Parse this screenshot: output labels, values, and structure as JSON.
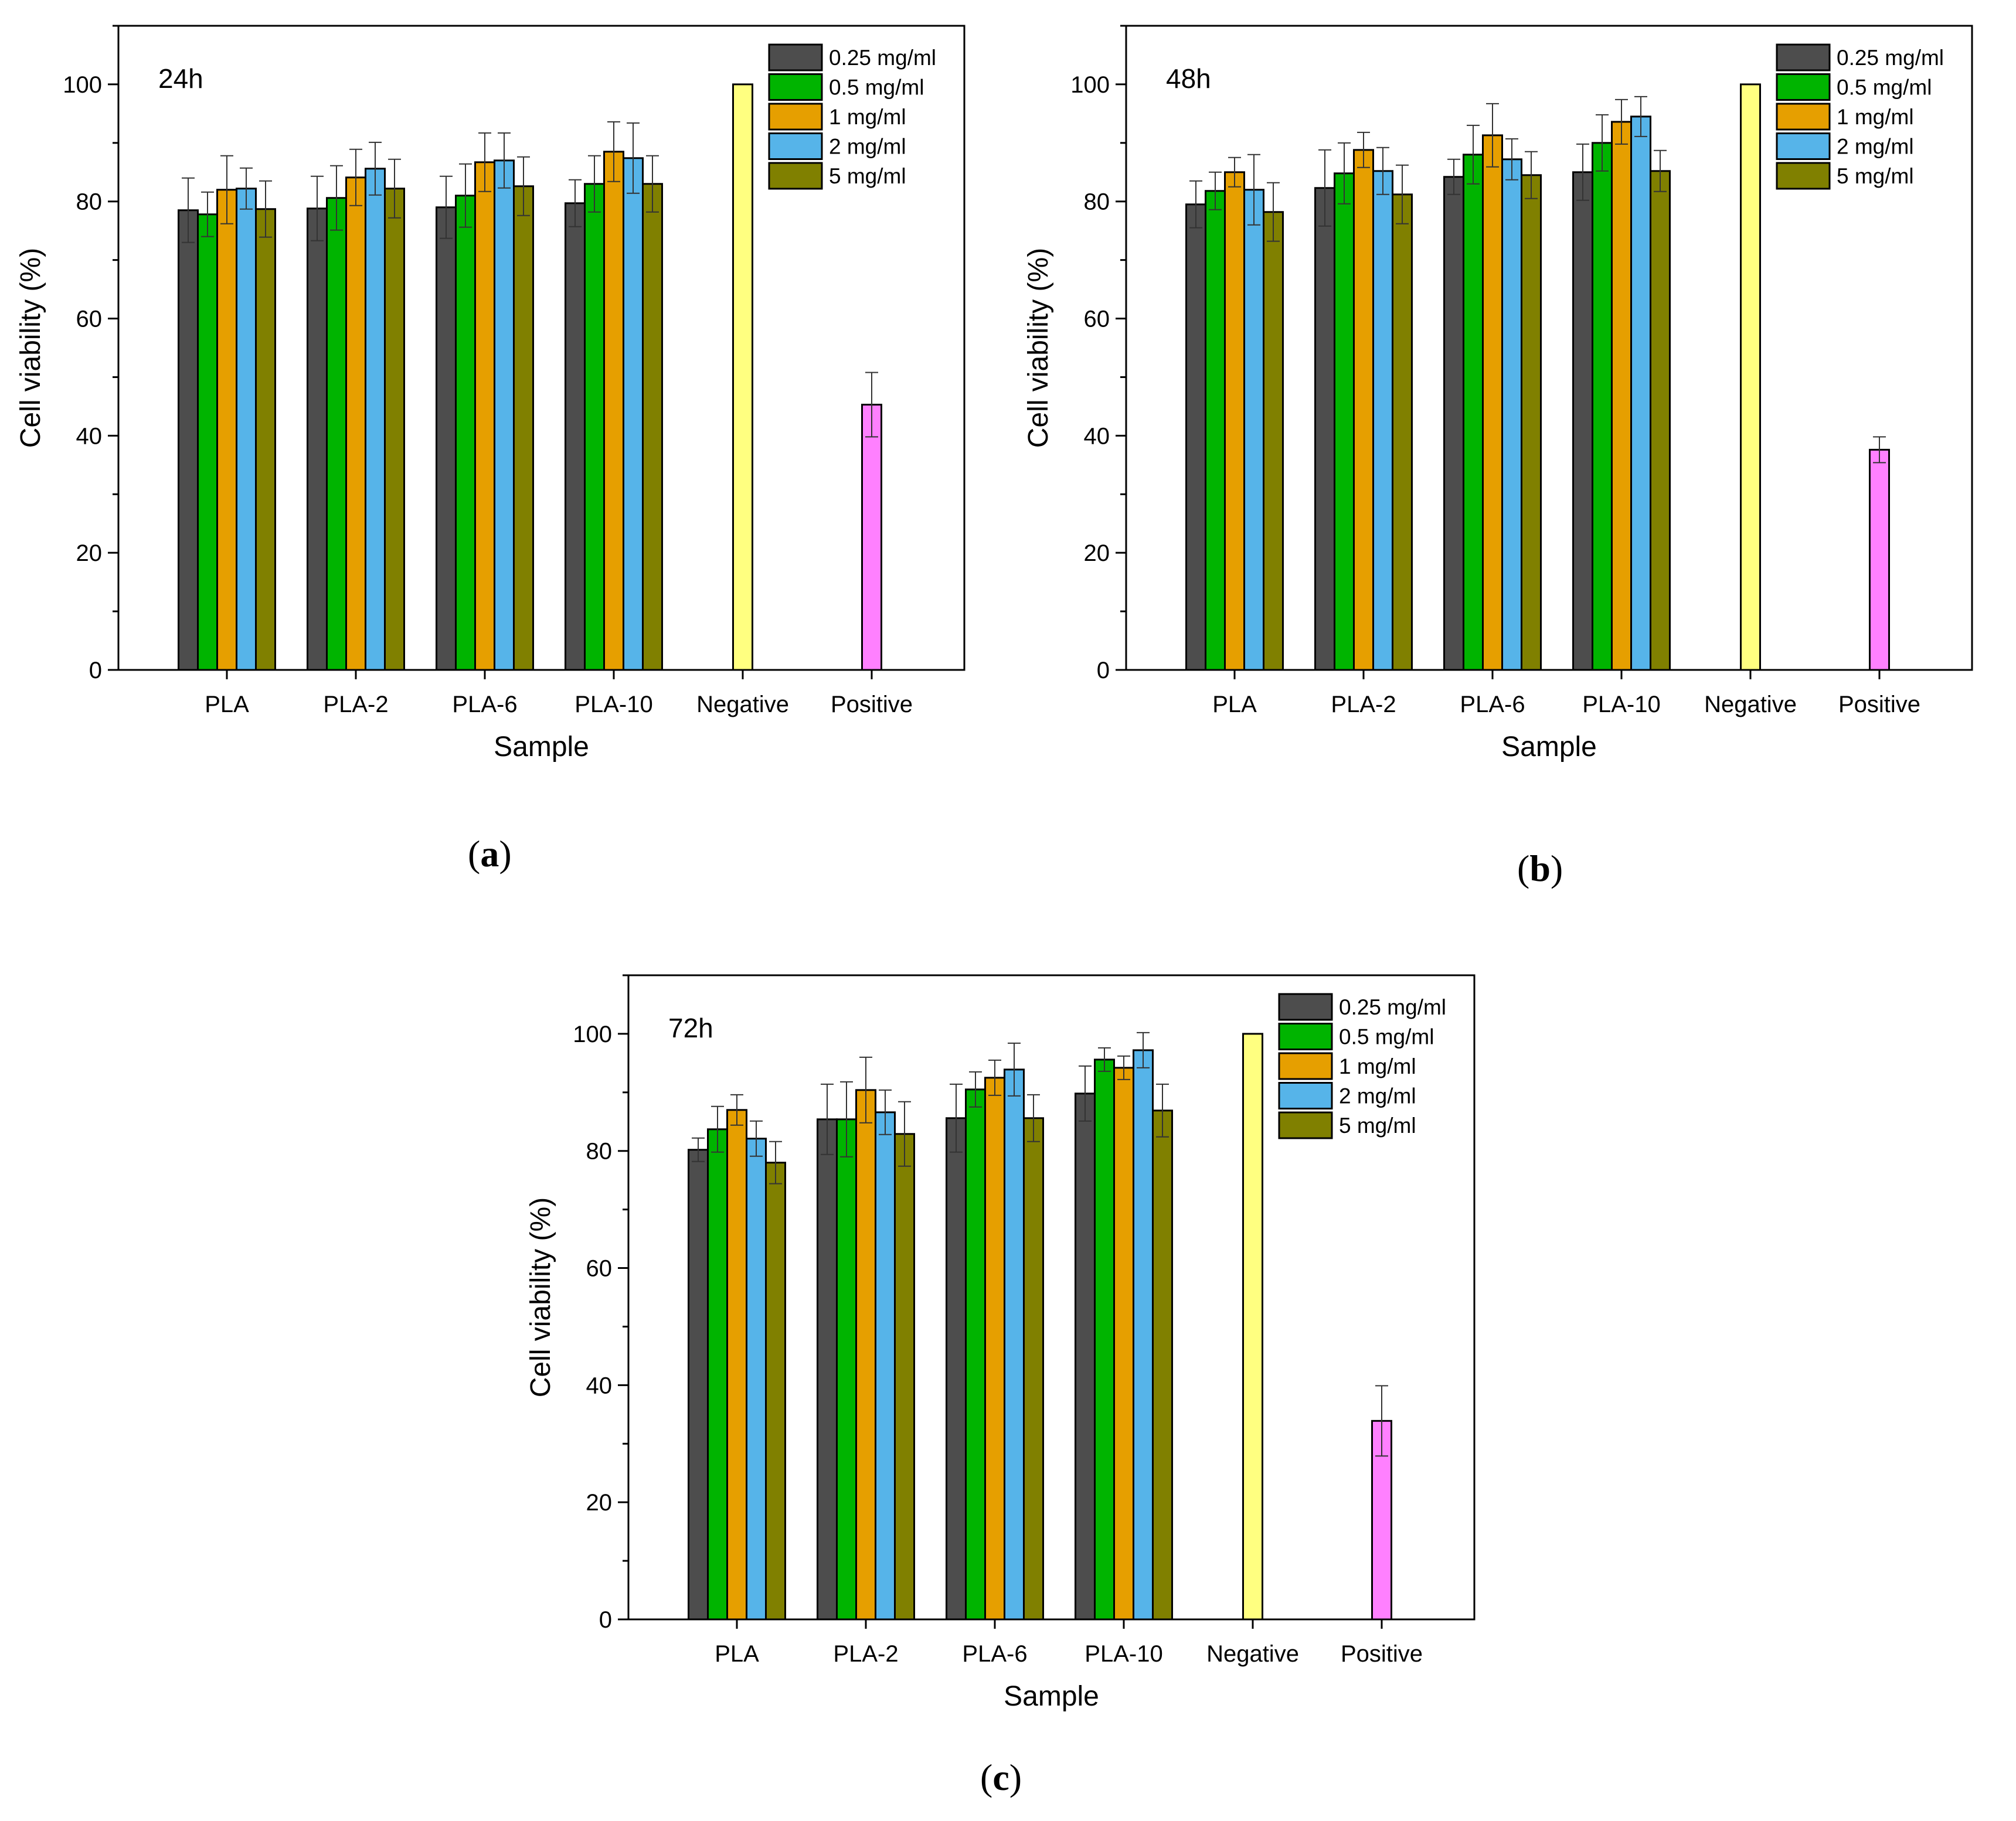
{
  "chart_data": [
    {
      "type": "bar",
      "panel_label": "a",
      "title": "24h",
      "xlabel": "Sample",
      "ylabel": "Cell viability (%)",
      "ylim": [
        0,
        110
      ],
      "yticks": [
        0,
        20,
        40,
        60,
        80,
        100
      ],
      "categories": [
        "PLA",
        "PLA-2",
        "PLA-6",
        "PLA-10",
        "Negative",
        "Positive"
      ],
      "series": [
        {
          "name": "0.25 mg/ml",
          "color": "#4d4d4d",
          "values": [
            78.5,
            78.8,
            79.0,
            79.7,
            null,
            null
          ],
          "errors": [
            5.5,
            5.5,
            5.3,
            4.0,
            null,
            null
          ]
        },
        {
          "name": "0.5 mg/ml",
          "color": "#00b400",
          "values": [
            77.8,
            80.6,
            81.0,
            83.0,
            null,
            null
          ],
          "errors": [
            3.8,
            5.5,
            5.4,
            4.8,
            null,
            null
          ]
        },
        {
          "name": "1 mg/ml",
          "color": "#e69f00",
          "values": [
            82.0,
            84.1,
            86.7,
            88.5,
            null,
            null
          ],
          "errors": [
            5.8,
            4.8,
            5.0,
            5.1,
            null,
            null
          ]
        },
        {
          "name": "2 mg/ml",
          "color": "#56b4e9",
          "values": [
            82.2,
            85.6,
            87.0,
            87.4,
            null,
            null
          ],
          "errors": [
            3.5,
            4.5,
            4.7,
            6.0,
            null,
            null
          ]
        },
        {
          "name": "5 mg/ml",
          "color": "#808000",
          "values": [
            78.7,
            82.2,
            82.6,
            83.0,
            null,
            null
          ],
          "errors": [
            4.8,
            5.0,
            5.0,
            4.8,
            null,
            null
          ]
        }
      ],
      "controls": [
        {
          "category": "Negative",
          "value": 100.0,
          "error": 0,
          "color": "#ffff80"
        },
        {
          "category": "Positive",
          "value": 45.3,
          "error": 5.5,
          "color": "#ff80ff"
        }
      ]
    },
    {
      "type": "bar",
      "panel_label": "b",
      "title": "48h",
      "xlabel": "Sample",
      "ylabel": "Cell viability (%)",
      "ylim": [
        0,
        110
      ],
      "yticks": [
        0,
        20,
        40,
        60,
        80,
        100
      ],
      "categories": [
        "PLA",
        "PLA-2",
        "PLA-6",
        "PLA-10",
        "Negative",
        "Positive"
      ],
      "series": [
        {
          "name": "0.25 mg/ml",
          "color": "#4d4d4d",
          "values": [
            79.5,
            82.3,
            84.2,
            85.0,
            null,
            null
          ],
          "errors": [
            4.0,
            6.5,
            3.0,
            4.8,
            null,
            null
          ]
        },
        {
          "name": "0.5 mg/ml",
          "color": "#00b400",
          "values": [
            81.8,
            84.8,
            88.0,
            90.0,
            null,
            null
          ],
          "errors": [
            3.2,
            5.2,
            5.0,
            4.8,
            null,
            null
          ]
        },
        {
          "name": "1 mg/ml",
          "color": "#e69f00",
          "values": [
            85.0,
            88.8,
            91.3,
            93.6,
            null,
            null
          ],
          "errors": [
            2.5,
            3.0,
            5.4,
            3.8,
            null,
            null
          ]
        },
        {
          "name": "2 mg/ml",
          "color": "#56b4e9",
          "values": [
            82.0,
            85.2,
            87.2,
            94.5,
            null,
            null
          ],
          "errors": [
            6.0,
            4.0,
            3.5,
            3.4,
            null,
            null
          ]
        },
        {
          "name": "5 mg/ml",
          "color": "#808000",
          "values": [
            78.2,
            81.2,
            84.5,
            85.2,
            null,
            null
          ],
          "errors": [
            5.0,
            5.0,
            4.0,
            3.5,
            null,
            null
          ]
        }
      ],
      "controls": [
        {
          "category": "Negative",
          "value": 100.0,
          "error": 0,
          "color": "#ffff80"
        },
        {
          "category": "Positive",
          "value": 37.6,
          "error": 2.2,
          "color": "#ff80ff"
        }
      ]
    },
    {
      "type": "bar",
      "panel_label": "c",
      "title": "72h",
      "xlabel": "Sample",
      "ylabel": "Cell viability (%)",
      "ylim": [
        0,
        110
      ],
      "yticks": [
        0,
        20,
        40,
        60,
        80,
        100
      ],
      "categories": [
        "PLA",
        "PLA-2",
        "PLA-6",
        "PLA-10",
        "Negative",
        "Positive"
      ],
      "series": [
        {
          "name": "0.25 mg/ml",
          "color": "#4d4d4d",
          "values": [
            80.2,
            85.4,
            85.6,
            89.8,
            null,
            null
          ],
          "errors": [
            2.0,
            6.0,
            5.8,
            4.7,
            null,
            null
          ]
        },
        {
          "name": "0.5 mg/ml",
          "color": "#00b400",
          "values": [
            83.7,
            85.4,
            90.5,
            95.6,
            null,
            null
          ],
          "errors": [
            3.9,
            6.4,
            3.0,
            2.0,
            null,
            null
          ]
        },
        {
          "name": "1 mg/ml",
          "color": "#e69f00",
          "values": [
            87.0,
            90.4,
            92.5,
            94.2,
            null,
            null
          ],
          "errors": [
            2.6,
            5.6,
            3.0,
            2.0,
            null,
            null
          ]
        },
        {
          "name": "2 mg/ml",
          "color": "#56b4e9",
          "values": [
            82.1,
            86.6,
            93.9,
            97.2,
            null,
            null
          ],
          "errors": [
            3.0,
            3.8,
            4.5,
            3.0,
            null,
            null
          ]
        },
        {
          "name": "5 mg/ml",
          "color": "#808000",
          "values": [
            78.0,
            82.9,
            85.6,
            86.9,
            null,
            null
          ],
          "errors": [
            3.6,
            5.5,
            4.0,
            4.5,
            null,
            null
          ]
        }
      ],
      "controls": [
        {
          "category": "Negative",
          "value": 100.0,
          "error": 0,
          "color": "#ffff80"
        },
        {
          "category": "Positive",
          "value": 33.9,
          "error": 6.0,
          "color": "#ff80ff"
        }
      ]
    }
  ]
}
